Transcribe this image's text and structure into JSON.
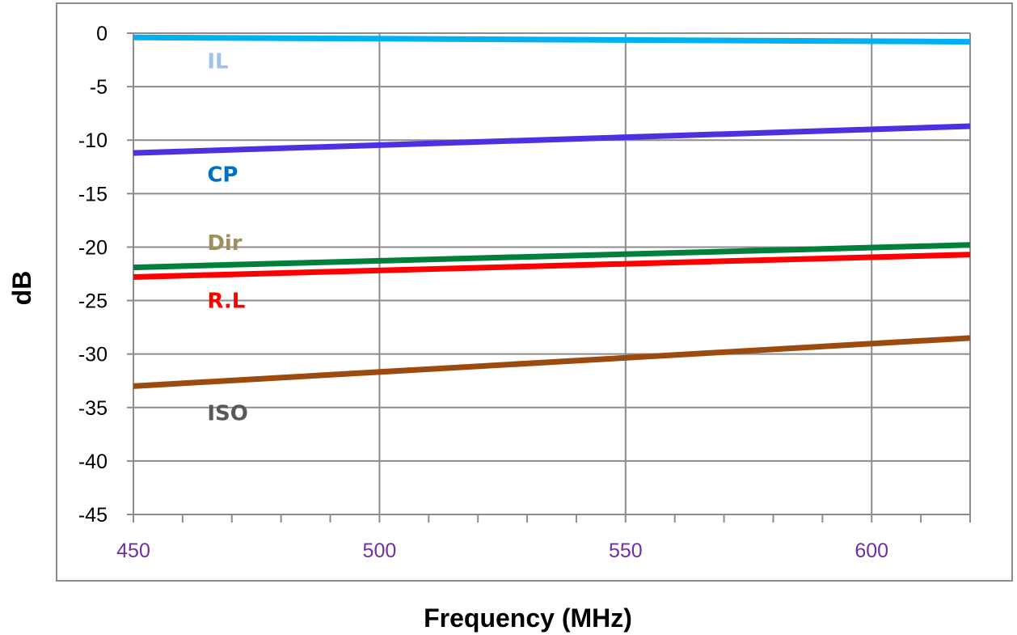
{
  "chart_data": {
    "type": "line",
    "xlabel": "Frequency (MHz)",
    "ylabel": "dB",
    "xlim": [
      450,
      620
    ],
    "ylim": [
      -45,
      0
    ],
    "x_ticks": [
      450,
      500,
      550,
      600
    ],
    "y_ticks": [
      0,
      -5,
      -10,
      -15,
      -20,
      -25,
      -30,
      -35,
      -40,
      -45
    ],
    "x_tick_color": "#7030A0",
    "grid": true,
    "legend": "inline-labels",
    "series": [
      {
        "name": "IL",
        "color": "#00B0F0",
        "label_color": "#9DC3E6",
        "x": [
          450,
          620
        ],
        "y": [
          -0.4,
          -0.8
        ],
        "label_pos": {
          "x": 465,
          "y": -2.6
        }
      },
      {
        "name": "CP",
        "color": "#4F2FE0",
        "label_color": "#0070C0",
        "x": [
          450,
          620
        ],
        "y": [
          -11.2,
          -8.7
        ],
        "label_pos": {
          "x": 465,
          "y": -13.2
        }
      },
      {
        "name": "Dir",
        "color": "#00803A",
        "label_color": "#A09060",
        "x": [
          450,
          620
        ],
        "y": [
          -21.9,
          -19.8
        ],
        "label_pos": {
          "x": 465,
          "y": -19.6
        }
      },
      {
        "name": "R.L",
        "color": "#FF0000",
        "label_color": "#FF0000",
        "x": [
          450,
          620
        ],
        "y": [
          -22.8,
          -20.7
        ],
        "label_pos": {
          "x": 465,
          "y": -25.0
        }
      },
      {
        "name": "ISO",
        "color": "#9C4A0E",
        "label_color": "#595959",
        "x": [
          450,
          620
        ],
        "y": [
          -33.0,
          -28.5
        ],
        "label_pos": {
          "x": 465,
          "y": -35.5
        }
      }
    ]
  }
}
